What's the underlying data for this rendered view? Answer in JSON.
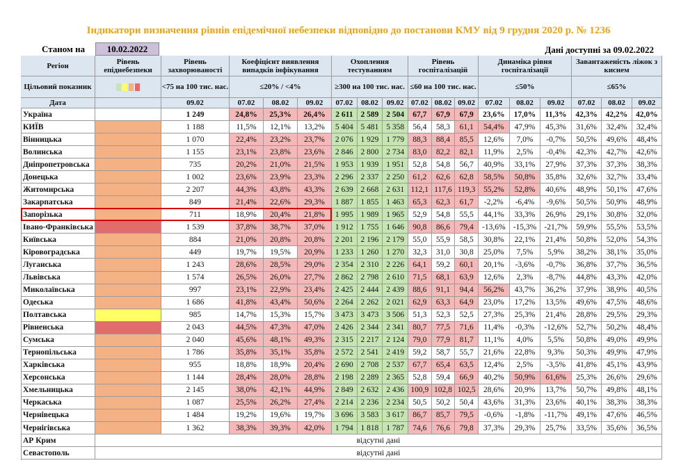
{
  "title": "Індикатори визначення рівнів епідемічної небезпеки відповідно до постанови КМУ від 9 грудня 2020 р. № 1236",
  "as_of": {
    "label": "Станом на",
    "date": "10.02.2022"
  },
  "available": "Дані доступні за 09.02.2022",
  "palette": {
    "red": "#f4b8b8",
    "green": "#c6e5b3",
    "orange": "#f4b183",
    "darkred": "#e06c6c",
    "yellow": "#ffff66"
  },
  "table": {
    "header": {
      "columns": [
        "Регіон",
        "Рівень епіднебезпеки",
        "Рівень захворюваності",
        "Коефіцієнт виявлення випадків інфікування",
        "Охоплення тестуванням",
        "Рівень госпіталізацій",
        "Динаміка рівня госпіталізації",
        "Завантаженість ліжок з киснем"
      ],
      "target_label": "Цільовий показник",
      "targets": [
        "<75 на 100 тис. нас.",
        "≤20% / <4%",
        "≥300 на 100 тис. нас.",
        "≤60 на 100 тис. нас.",
        "≤50%",
        "≤65%"
      ],
      "date_label": "Дата",
      "dates": [
        "07.02",
        "08.02",
        "09.02"
      ]
    },
    "rows": [
      {
        "region": "Україна",
        "level": null,
        "values": [
          "1 249",
          "24,8%",
          "25,3%",
          "26,4%",
          "2 611",
          "2 589",
          "2 504",
          "67,7",
          "67,9",
          "67,9",
          "23,6%",
          "17,0%",
          "11,3%",
          "42,3%",
          "42,2%",
          "42,0%"
        ],
        "fills": [
          null,
          "red",
          "red",
          "red",
          "green",
          "green",
          "green",
          "red",
          "red",
          "red",
          null,
          null,
          null,
          null,
          null,
          null
        ]
      },
      {
        "region": "КИЇВ",
        "level": "orange",
        "values": [
          "1 188",
          "11,5%",
          "12,1%",
          "13,2%",
          "5 404",
          "5 481",
          "5 358",
          "56,4",
          "58,3",
          "61,1",
          "54,4%",
          "47,9%",
          "45,3%",
          "31,6%",
          "32,4%",
          "32,4%"
        ],
        "fills": [
          null,
          null,
          null,
          null,
          "green",
          "green",
          "green",
          null,
          null,
          "red",
          "red",
          null,
          null,
          null,
          null,
          null
        ]
      },
      {
        "region": "Вінницька",
        "level": "orange",
        "values": [
          "1 070",
          "22,4%",
          "23,2%",
          "23,7%",
          "2 076",
          "1 929",
          "1 779",
          "88,3",
          "88,4",
          "85,5",
          "12,6%",
          "7,0%",
          "-0,7%",
          "50,5%",
          "49,6%",
          "48,4%"
        ],
        "fills": [
          null,
          "red",
          "red",
          "red",
          "green",
          "green",
          "green",
          "red",
          "red",
          "red",
          null,
          null,
          null,
          null,
          null,
          null
        ]
      },
      {
        "region": "Волинська",
        "level": "orange",
        "values": [
          "1 155",
          "23,1%",
          "23,8%",
          "23,6%",
          "2 846",
          "2 800",
          "2 734",
          "83,0",
          "82,2",
          "82,1",
          "11,9%",
          "2,5%",
          "-0,4%",
          "42,3%",
          "42,7%",
          "42,6%"
        ],
        "fills": [
          null,
          "red",
          "red",
          "red",
          "green",
          "green",
          "green",
          "red",
          "red",
          "red",
          null,
          null,
          null,
          null,
          null,
          null
        ]
      },
      {
        "region": "Дніпропетровська",
        "level": "orange",
        "values": [
          "735",
          "20,2%",
          "21,0%",
          "21,5%",
          "1 953",
          "1 939",
          "1 951",
          "52,8",
          "54,8",
          "56,7",
          "40,9%",
          "33,1%",
          "27,9%",
          "37,3%",
          "37,3%",
          "38,3%"
        ],
        "fills": [
          null,
          "red",
          "red",
          "red",
          "green",
          "green",
          "green",
          null,
          null,
          null,
          null,
          null,
          null,
          null,
          null,
          null
        ]
      },
      {
        "region": "Донецька",
        "level": "orange",
        "values": [
          "1 002",
          "23,6%",
          "23,9%",
          "23,3%",
          "2 296",
          "2 337",
          "2 250",
          "61,2",
          "62,6",
          "62,8",
          "58,5%",
          "50,8%",
          "35,8%",
          "32,6%",
          "32,7%",
          "33,4%"
        ],
        "fills": [
          null,
          "red",
          "red",
          "red",
          "green",
          "green",
          "green",
          "red",
          "red",
          "red",
          "red",
          "red",
          null,
          null,
          null,
          null
        ]
      },
      {
        "region": "Житомирська",
        "level": "orange",
        "values": [
          "2 207",
          "44,3%",
          "43,8%",
          "43,3%",
          "2 639",
          "2 668",
          "2 631",
          "112,1",
          "117,6",
          "119,3",
          "55,2%",
          "52,8%",
          "40,6%",
          "48,9%",
          "50,1%",
          "47,6%"
        ],
        "fills": [
          null,
          "red",
          "red",
          "red",
          "green",
          "green",
          "green",
          "red",
          "red",
          "red",
          "red",
          "red",
          null,
          null,
          null,
          null
        ]
      },
      {
        "region": "Закарпатська",
        "level": "orange",
        "values": [
          "849",
          "21,4%",
          "22,6%",
          "29,3%",
          "1 887",
          "1 855",
          "1 463",
          "65,3",
          "62,3",
          "61,7",
          "-2,2%",
          "-6,4%",
          "-9,6%",
          "50,5%",
          "50,9%",
          "48,9%"
        ],
        "fills": [
          null,
          "red",
          "red",
          "red",
          "green",
          "green",
          "green",
          "red",
          "red",
          "red",
          null,
          null,
          null,
          null,
          null,
          null
        ]
      },
      {
        "region": "Запорізька",
        "level": "orange",
        "outlined": true,
        "values": [
          "711",
          "18,9%",
          "20,4%",
          "21,8%",
          "1 995",
          "1 989",
          "1 965",
          "52,9",
          "54,8",
          "55,5",
          "44,1%",
          "33,3%",
          "26,9%",
          "29,1%",
          "30,8%",
          "32,0%"
        ],
        "fills": [
          null,
          null,
          "red",
          "red",
          "green",
          "green",
          "green",
          null,
          null,
          null,
          null,
          null,
          null,
          null,
          null,
          null
        ]
      },
      {
        "region": "Івано-Франківська",
        "level": "darkred",
        "values": [
          "1 539",
          "37,8%",
          "38,7%",
          "37,0%",
          "1 912",
          "1 755",
          "1 646",
          "90,8",
          "86,6",
          "79,4",
          "-13,6%",
          "-15,3%",
          "-21,7%",
          "59,9%",
          "55,5%",
          "53,5%"
        ],
        "fills": [
          null,
          "red",
          "red",
          "red",
          "green",
          "green",
          "green",
          "red",
          "red",
          "red",
          null,
          null,
          null,
          null,
          null,
          null
        ]
      },
      {
        "region": "Київська",
        "level": "orange",
        "values": [
          "884",
          "21,0%",
          "20,8%",
          "20,8%",
          "2 201",
          "2 196",
          "2 179",
          "55,0",
          "55,9",
          "58,5",
          "30,8%",
          "22,1%",
          "21,4%",
          "50,8%",
          "52,0%",
          "54,3%"
        ],
        "fills": [
          null,
          "red",
          "red",
          "red",
          "green",
          "green",
          "green",
          null,
          null,
          null,
          null,
          null,
          null,
          null,
          null,
          null
        ]
      },
      {
        "region": "Кіровоградська",
        "level": "orange",
        "values": [
          "449",
          "19,7%",
          "19,5%",
          "20,9%",
          "1 233",
          "1 260",
          "1 270",
          "32,3",
          "31,0",
          "30,8",
          "25,0%",
          "7,5%",
          "5,9%",
          "38,2%",
          "38,1%",
          "35,0%"
        ],
        "fills": [
          null,
          null,
          null,
          "red",
          "green",
          "green",
          "green",
          null,
          null,
          null,
          null,
          null,
          null,
          null,
          null,
          null
        ]
      },
      {
        "region": "Луганська",
        "level": "orange",
        "values": [
          "1 243",
          "28,6%",
          "28,5%",
          "29,0%",
          "2 354",
          "2 310",
          "2 226",
          "64,1",
          "59,2",
          "60,1",
          "20,1%",
          "-3,6%",
          "-0,7%",
          "36,8%",
          "37,7%",
          "36,5%"
        ],
        "fills": [
          null,
          "red",
          "red",
          "red",
          "green",
          "green",
          "green",
          "red",
          null,
          "red",
          null,
          null,
          null,
          null,
          null,
          null
        ]
      },
      {
        "region": "Львівська",
        "level": "orange",
        "values": [
          "1 574",
          "26,5%",
          "26,0%",
          "27,7%",
          "2 862",
          "2 798",
          "2 610",
          "71,5",
          "68,1",
          "63,9",
          "12,6%",
          "2,3%",
          "-8,7%",
          "44,8%",
          "43,3%",
          "42,0%"
        ],
        "fills": [
          null,
          "red",
          "red",
          "red",
          "green",
          "green",
          "green",
          "red",
          "red",
          "red",
          null,
          null,
          null,
          null,
          null,
          null
        ]
      },
      {
        "region": "Миколаївська",
        "level": "orange",
        "values": [
          "997",
          "23,1%",
          "22,9%",
          "23,4%",
          "2 425",
          "2 444",
          "2 439",
          "88,6",
          "91,1",
          "94,4",
          "56,2%",
          "43,7%",
          "36,2%",
          "37,9%",
          "38,9%",
          "40,5%"
        ],
        "fills": [
          null,
          "red",
          "red",
          "red",
          "green",
          "green",
          "green",
          "red",
          "red",
          "red",
          "red",
          null,
          null,
          null,
          null,
          null
        ]
      },
      {
        "region": "Одеська",
        "level": "orange",
        "values": [
          "1 686",
          "41,8%",
          "43,4%",
          "50,6%",
          "2 264",
          "2 262",
          "2 021",
          "62,9",
          "63,3",
          "64,9",
          "23,0%",
          "17,2%",
          "13,5%",
          "49,6%",
          "47,5%",
          "48,6%"
        ],
        "fills": [
          null,
          "red",
          "red",
          "red",
          "green",
          "green",
          "green",
          "red",
          "red",
          "red",
          null,
          null,
          null,
          null,
          null,
          null
        ]
      },
      {
        "region": "Полтавська",
        "level": "yellow",
        "values": [
          "985",
          "14,7%",
          "15,3%",
          "15,7%",
          "3 473",
          "3 473",
          "3 506",
          "51,3",
          "52,3",
          "52,5",
          "27,3%",
          "25,3%",
          "21,4%",
          "28,8%",
          "29,5%",
          "29,3%"
        ],
        "fills": [
          null,
          null,
          null,
          null,
          "green",
          "green",
          "green",
          null,
          null,
          null,
          null,
          null,
          null,
          null,
          null,
          null
        ]
      },
      {
        "region": "Рівненська",
        "level": "darkred",
        "values": [
          "2 043",
          "44,5%",
          "47,3%",
          "47,0%",
          "2 426",
          "2 344",
          "2 341",
          "80,7",
          "77,5",
          "71,6",
          "11,4%",
          "-0,3%",
          "-12,6%",
          "52,7%",
          "50,2%",
          "48,4%"
        ],
        "fills": [
          null,
          "red",
          "red",
          "red",
          "green",
          "green",
          "green",
          "red",
          "red",
          "red",
          null,
          null,
          null,
          null,
          null,
          null
        ]
      },
      {
        "region": "Сумська",
        "level": "orange",
        "values": [
          "2 040",
          "45,6%",
          "48,1%",
          "49,3%",
          "2 315",
          "2 217",
          "2 124",
          "79,0",
          "77,9",
          "81,7",
          "11,1%",
          "4,0%",
          "5,5%",
          "50,8%",
          "49,0%",
          "49,9%"
        ],
        "fills": [
          null,
          "red",
          "red",
          "red",
          "green",
          "green",
          "green",
          "red",
          "red",
          "red",
          null,
          null,
          null,
          null,
          null,
          null
        ]
      },
      {
        "region": "Тернопільська",
        "level": "orange",
        "values": [
          "1 786",
          "35,8%",
          "35,1%",
          "35,8%",
          "2 572",
          "2 541",
          "2 419",
          "59,2",
          "58,7",
          "55,7",
          "21,6%",
          "22,8%",
          "9,3%",
          "50,3%",
          "49,9%",
          "47,9%"
        ],
        "fills": [
          null,
          "red",
          "red",
          "red",
          "green",
          "green",
          "green",
          null,
          null,
          null,
          null,
          null,
          null,
          null,
          null,
          null
        ]
      },
      {
        "region": "Харківська",
        "level": "orange",
        "values": [
          "955",
          "18,8%",
          "18,9%",
          "20,4%",
          "2 690",
          "2 708",
          "2 537",
          "67,7",
          "65,4",
          "63,5",
          "12,4%",
          "2,5%",
          "-3,5%",
          "41,8%",
          "45,1%",
          "43,9%"
        ],
        "fills": [
          null,
          null,
          null,
          "red",
          "green",
          "green",
          "green",
          "red",
          "red",
          "red",
          null,
          null,
          null,
          null,
          null,
          null
        ]
      },
      {
        "region": "Херсонська",
        "level": "orange",
        "values": [
          "1 144",
          "28,4%",
          "28,0%",
          "28,8%",
          "2 198",
          "2 289",
          "2 365",
          "52,8",
          "59,4",
          "66,9",
          "40,2%",
          "50,9%",
          "61,6%",
          "25,3%",
          "26,6%",
          "29,6%"
        ],
        "fills": [
          null,
          "red",
          "red",
          "red",
          "green",
          "green",
          "green",
          null,
          null,
          "red",
          null,
          "red",
          "red",
          null,
          null,
          null
        ]
      },
      {
        "region": "Хмельницька",
        "level": "orange",
        "values": [
          "2 145",
          "38,0%",
          "42,1%",
          "44,9%",
          "2 849",
          "2 632",
          "2 436",
          "100,9",
          "102,8",
          "102,5",
          "28,6%",
          "20,9%",
          "13,7%",
          "50,7%",
          "49,8%",
          "48,1%"
        ],
        "fills": [
          null,
          "red",
          "red",
          "red",
          "green",
          "green",
          "green",
          "red",
          "red",
          "red",
          null,
          null,
          null,
          null,
          null,
          null
        ]
      },
      {
        "region": "Черкаська",
        "level": "orange",
        "values": [
          "1 087",
          "25,5%",
          "26,2%",
          "27,4%",
          "2 214",
          "2 236",
          "2 234",
          "50,5",
          "50,2",
          "50,4",
          "43,6%",
          "31,3%",
          "23,6%",
          "40,1%",
          "38,3%",
          "38,3%"
        ],
        "fills": [
          null,
          "red",
          "red",
          "red",
          "green",
          "green",
          "green",
          null,
          null,
          null,
          null,
          null,
          null,
          null,
          null,
          null
        ]
      },
      {
        "region": "Чернівецька",
        "level": "orange",
        "values": [
          "1 484",
          "19,2%",
          "19,6%",
          "19,7%",
          "3 696",
          "3 583",
          "3 617",
          "86,7",
          "85,7",
          "79,5",
          "-0,6%",
          "-1,8%",
          "-11,7%",
          "49,1%",
          "47,6%",
          "46,5%"
        ],
        "fills": [
          null,
          null,
          null,
          null,
          "green",
          "green",
          "green",
          "red",
          "red",
          "red",
          null,
          null,
          null,
          null,
          null,
          null
        ]
      },
      {
        "region": "Чернігівська",
        "level": "orange",
        "values": [
          "1 362",
          "38,3%",
          "39,3%",
          "42,0%",
          "1 794",
          "1 818",
          "1 787",
          "74,6",
          "76,6",
          "79,8",
          "37,3%",
          "29,3%",
          "25,7%",
          "33,5%",
          "35,6%",
          "36,5%"
        ],
        "fills": [
          null,
          "red",
          "red",
          "red",
          "green",
          "green",
          "green",
          "red",
          "red",
          "red",
          null,
          null,
          null,
          null,
          null,
          null
        ]
      },
      {
        "region": "АР Крим",
        "note": "відсутні дані"
      },
      {
        "region": "Севастополь",
        "note": "відсутні дані"
      }
    ]
  }
}
